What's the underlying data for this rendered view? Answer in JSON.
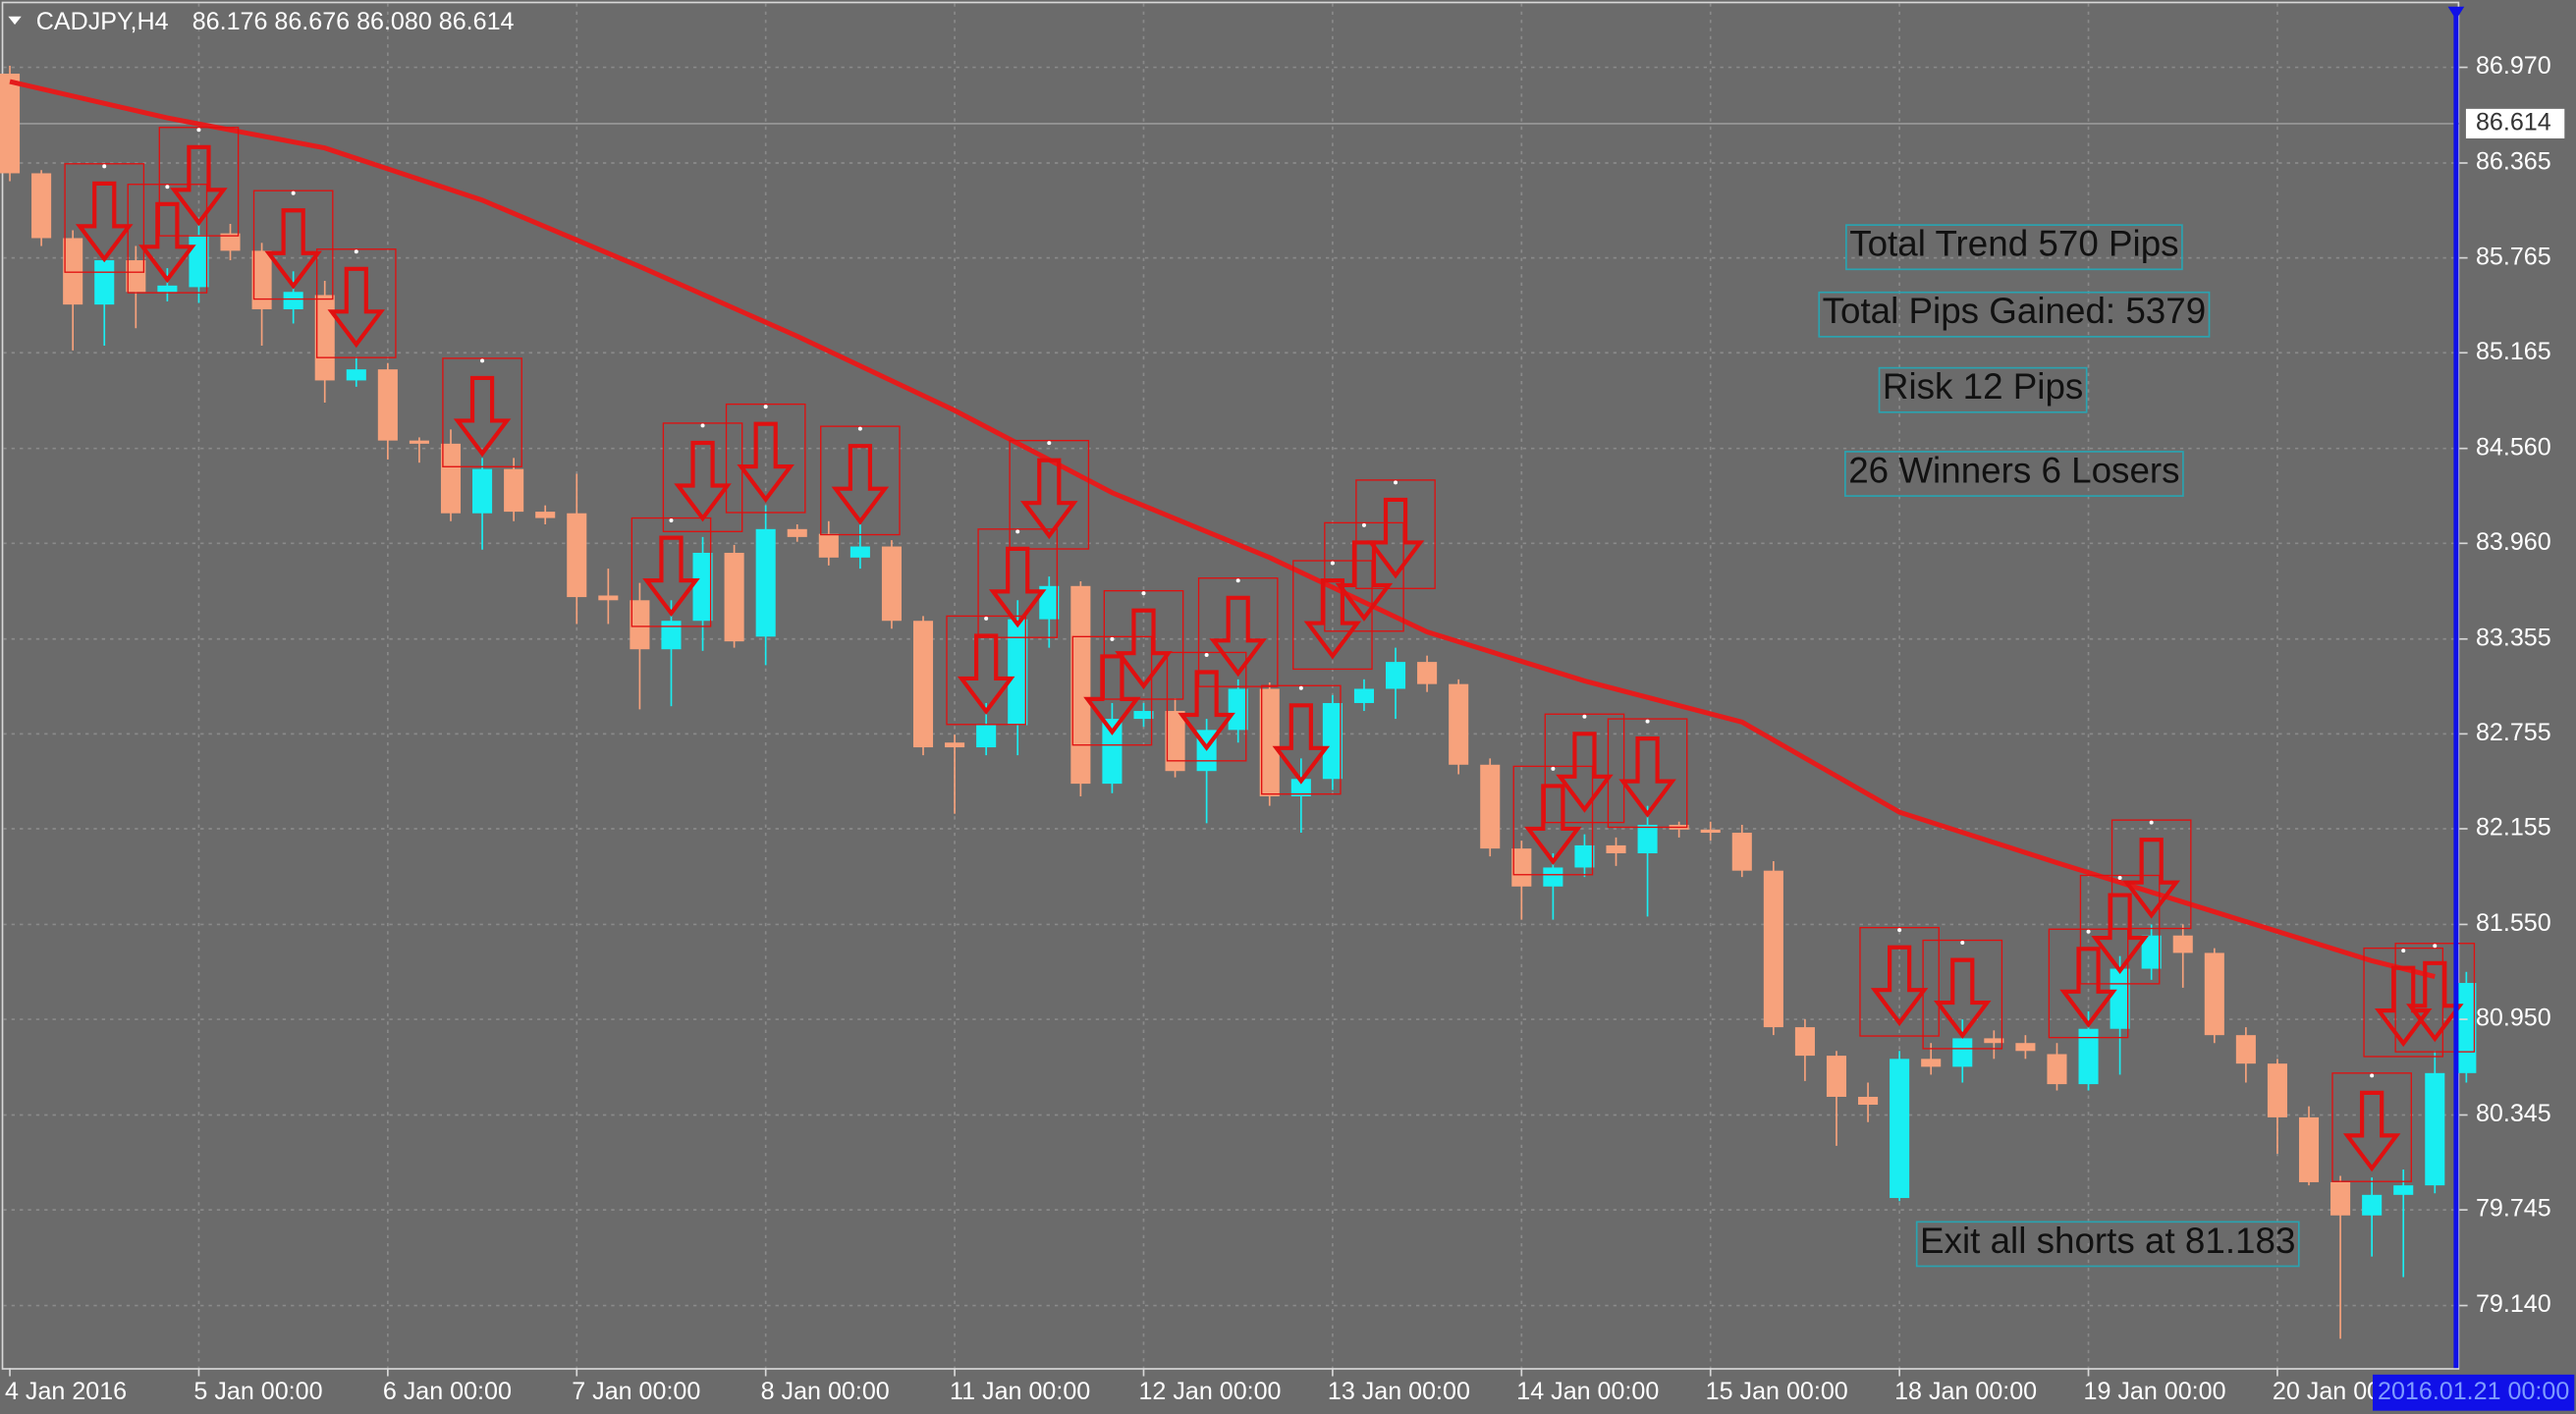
{
  "chart_data": {
    "type": "candlestick",
    "symbol": "CADJPY,H4",
    "quote": "86.176 86.676 86.080 86.614",
    "categories": [
      "4 Jan 2016",
      null,
      null,
      null,
      null,
      null,
      "5 Jan 00:00",
      null,
      null,
      null,
      null,
      null,
      "6 Jan 00:00",
      null,
      null,
      null,
      null,
      null,
      "7 Jan 00:00",
      null,
      null,
      null,
      null,
      null,
      "8 Jan 00:00",
      null,
      null,
      null,
      null,
      null,
      "11 Jan 00:00",
      null,
      null,
      null,
      null,
      null,
      "12 Jan 00:00",
      null,
      null,
      null,
      null,
      null,
      "13 Jan 00:00",
      null,
      null,
      null,
      null,
      null,
      "14 Jan 00:00",
      null,
      null,
      null,
      null,
      null,
      "15 Jan 00:00",
      null,
      null,
      null,
      null,
      null,
      "18 Jan 00:00",
      null,
      null,
      null,
      null,
      null,
      "19 Jan 00:00",
      null,
      null,
      null,
      null,
      null,
      "20 Jan 00:00",
      null,
      null,
      null,
      null,
      null,
      "2016.01.21 00:00"
    ],
    "cursor_index": 78,
    "open": [
      86.93,
      86.3,
      85.89,
      85.47,
      85.75,
      85.55,
      85.58,
      85.92,
      85.81,
      85.44,
      85.53,
      84.99,
      85.06,
      84.61,
      84.59,
      84.15,
      84.43,
      84.16,
      84.15,
      83.63,
      83.6,
      83.29,
      83.47,
      83.9,
      83.37,
      84.05,
      84.02,
      83.87,
      83.94,
      83.47,
      82.7,
      82.67,
      82.81,
      83.48,
      83.69,
      82.44,
      82.85,
      82.9,
      82.52,
      82.78,
      83.04,
      82.36,
      82.47,
      82.95,
      83.04,
      83.21,
      83.07,
      82.56,
      82.03,
      81.79,
      81.91,
      82.05,
      82.0,
      82.18,
      82.15,
      82.13,
      81.89,
      80.9,
      80.72,
      80.46,
      79.82,
      80.7,
      80.65,
      80.83,
      80.8,
      80.73,
      80.54,
      80.89,
      81.27,
      81.48,
      81.37,
      80.85,
      80.67,
      80.33,
      79.92,
      79.71,
      79.84,
      79.9,
      80.61
    ],
    "high": [
      86.98,
      86.32,
      85.94,
      85.78,
      85.84,
      85.7,
      86.0,
      85.98,
      85.86,
      85.68,
      85.62,
      85.14,
      85.1,
      84.63,
      84.68,
      84.5,
      84.5,
      84.2,
      84.4,
      83.8,
      83.71,
      83.6,
      84.0,
      83.95,
      84.2,
      84.08,
      84.1,
      84.08,
      83.98,
      83.5,
      82.75,
      82.95,
      83.6,
      83.75,
      83.72,
      82.95,
      82.95,
      82.98,
      82.85,
      83.1,
      83.08,
      82.6,
      83.0,
      83.1,
      83.3,
      83.25,
      83.1,
      82.6,
      82.08,
      82.0,
      82.12,
      82.1,
      82.3,
      82.2,
      82.2,
      82.18,
      81.95,
      80.95,
      80.75,
      80.55,
      80.75,
      80.8,
      80.95,
      80.88,
      80.85,
      80.8,
      81.0,
      81.35,
      81.55,
      81.55,
      81.4,
      80.9,
      80.7,
      80.4,
      79.96,
      79.95,
      80.0,
      80.75,
      81.25
    ],
    "low": [
      86.25,
      85.84,
      85.18,
      85.21,
      85.32,
      85.49,
      85.48,
      85.75,
      85.21,
      85.35,
      84.85,
      84.95,
      84.49,
      84.47,
      84.1,
      83.92,
      84.1,
      84.08,
      83.45,
      83.45,
      82.91,
      82.93,
      83.28,
      83.3,
      83.19,
      83.97,
      83.82,
      83.8,
      83.42,
      82.62,
      82.25,
      82.62,
      82.62,
      83.3,
      82.36,
      82.38,
      82.8,
      82.48,
      82.19,
      82.7,
      82.3,
      82.13,
      82.4,
      82.9,
      82.85,
      83.02,
      82.5,
      81.98,
      81.58,
      81.58,
      81.85,
      81.92,
      81.6,
      82.1,
      82.08,
      81.85,
      80.85,
      80.56,
      80.15,
      80.3,
      79.8,
      80.6,
      80.55,
      80.7,
      80.7,
      80.5,
      80.5,
      80.6,
      81.2,
      81.15,
      80.8,
      80.55,
      80.1,
      79.9,
      78.93,
      79.45,
      79.32,
      79.85,
      80.55
    ],
    "close": [
      86.3,
      85.89,
      85.47,
      85.75,
      85.55,
      85.59,
      85.91,
      85.81,
      85.44,
      85.55,
      84.99,
      85.06,
      84.61,
      84.59,
      84.15,
      84.43,
      84.16,
      84.12,
      83.62,
      83.6,
      83.29,
      83.47,
      83.9,
      83.34,
      84.05,
      84.0,
      83.87,
      83.94,
      83.47,
      82.67,
      82.67,
      82.81,
      83.48,
      83.69,
      82.44,
      82.85,
      82.9,
      82.52,
      82.78,
      83.04,
      82.36,
      82.47,
      82.95,
      83.04,
      83.21,
      83.07,
      82.56,
      82.03,
      81.79,
      81.91,
      82.05,
      82.0,
      82.18,
      82.15,
      82.13,
      81.89,
      80.9,
      80.72,
      80.46,
      80.41,
      80.7,
      80.65,
      80.83,
      80.8,
      80.75,
      80.54,
      80.89,
      81.27,
      81.48,
      81.37,
      80.85,
      80.67,
      80.33,
      79.92,
      79.71,
      79.84,
      79.9,
      80.61,
      81.18
    ],
    "up_color": "#19eef2",
    "down_color": "#f7a27c",
    "moving_average": {
      "color": "#e41c1c",
      "x": [
        0,
        5,
        10,
        15,
        20,
        25,
        30,
        35,
        40,
        45,
        50,
        55,
        60,
        65,
        70,
        75,
        77
      ],
      "values": [
        86.88,
        86.65,
        86.46,
        86.13,
        85.71,
        85.27,
        84.8,
        84.28,
        83.87,
        83.4,
        83.09,
        82.83,
        82.26,
        81.94,
        81.63,
        81.32,
        81.22
      ]
    },
    "signals": {
      "color": "#e01010",
      "candle": [
        3,
        5,
        6,
        9,
        11,
        15,
        21,
        22,
        24,
        27,
        31,
        32,
        33,
        35,
        36,
        38,
        39,
        41,
        42,
        43,
        44,
        49,
        50,
        52,
        60,
        62,
        66,
        67,
        68,
        75,
        76,
        77
      ],
      "price": [
        86.36,
        86.23,
        86.59,
        86.19,
        85.82,
        85.13,
        84.12,
        84.72,
        84.84,
        84.7,
        83.5,
        84.05,
        84.61,
        83.37,
        83.66,
        83.27,
        83.74,
        83.06,
        83.85,
        84.09,
        84.36,
        82.55,
        82.88,
        82.85,
        81.53,
        81.45,
        81.52,
        81.86,
        82.21,
        80.61,
        81.4,
        81.43
      ]
    },
    "annotations": [
      "Total Trend 570 Pips",
      "Total Pips Gained: 5379",
      "Risk 12 Pips",
      "26 Winners 6 Losers",
      "Exit all shorts at 81.183"
    ],
    "last_price": {
      "value": 86.614,
      "label": "86.614"
    },
    "ylim": [
      78.745,
      87.375
    ],
    "yticks": [
      {
        "value": 86.97,
        "label": "86.970"
      },
      86.365,
      85.765,
      85.165,
      {
        "value": 84.56,
        "label": "84.560"
      },
      {
        "value": 83.96,
        "label": "83.960"
      },
      83.355,
      82.755,
      82.155,
      {
        "value": 81.55,
        "label": "81.550"
      },
      {
        "value": 80.95,
        "label": "80.950"
      },
      80.345,
      79.745,
      {
        "value": 79.14,
        "label": "79.140"
      }
    ],
    "grid": true
  }
}
